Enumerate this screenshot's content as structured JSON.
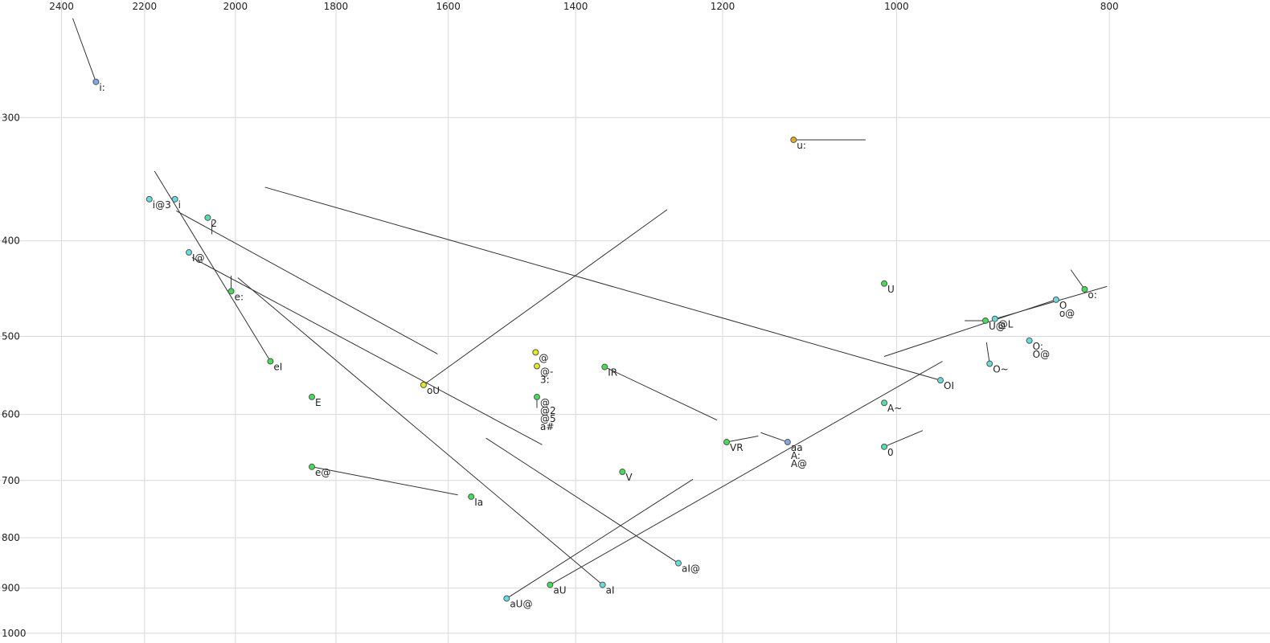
{
  "chart_data": {
    "type": "scatter",
    "log_x": true,
    "log_y": true,
    "grid": true,
    "xlim": [
      2560,
      676
    ],
    "ylim": [
      228,
      1023
    ],
    "xticks": [
      2400,
      2200,
      2000,
      1800,
      1600,
      1400,
      1200,
      1000,
      800
    ],
    "yticks": [
      300,
      400,
      500,
      600,
      700,
      800,
      900,
      1000
    ],
    "x": [
      2315,
      2189,
      2131,
      2059,
      2100,
      2009,
      1928,
      1846,
      1846,
      1642,
      1460,
      1458,
      1458,
      1358,
      1333,
      1195,
      1121,
      1114,
      1013,
      1013,
      1013,
      955,
      911,
      902,
      907,
      870,
      846,
      821,
      1562,
      1257,
      1438,
      1361,
      1505
    ],
    "y": [
      276,
      363,
      363,
      379,
      411,
      450,
      530,
      576,
      678,
      560,
      519,
      536,
      576,
      537,
      686,
      640,
      640,
      316,
      442,
      584,
      647,
      554,
      482,
      480,
      533,
      505,
      459,
      448,
      727,
      849,
      893,
      893,
      922
    ],
    "colors": [
      "#7fa8e8",
      "#66dddd",
      "#66dddd",
      "#55e0a8",
      "#66dddd",
      "#44dd55",
      "#44dd55",
      "#44dd55",
      "#44dd55",
      "#e8e820",
      "#e8e820",
      "#e8e820",
      "#44dd55",
      "#44dd55",
      "#44dd55",
      "#44dd55",
      "#7fa8e8",
      "#e8a818",
      "#44dd55",
      "#55e0a8",
      "#55e0a8",
      "#66dddd",
      "#44dd55",
      "#66dddd",
      "#66dddd",
      "#66dddd",
      "#66dddd",
      "#44dd55",
      "#44dd55",
      "#66dddd",
      "#44dd55",
      "#66dddd",
      "#66dddd"
    ],
    "labels": [
      [
        "i:"
      ],
      [
        "i@3"
      ],
      [
        "i"
      ],
      [
        "2"
      ],
      [
        "I@"
      ],
      [
        "e:"
      ],
      [
        "eI"
      ],
      [
        "E"
      ],
      [
        "e@"
      ],
      [
        "oU"
      ],
      [
        "@"
      ],
      [
        "@-",
        "3:"
      ],
      [
        "@",
        "@2",
        "@5",
        "a#"
      ],
      [
        "IR"
      ],
      [
        "V"
      ],
      [
        "VR"
      ],
      [
        "aa",
        "A:",
        "A@"
      ],
      [
        "u:"
      ],
      [
        "U"
      ],
      [
        "A~"
      ],
      [
        "0"
      ],
      [
        "OI"
      ],
      [
        "U@"
      ],
      [
        "@L"
      ],
      [
        "O~"
      ],
      [
        "O:",
        "O@"
      ],
      [
        "O",
        "o@"
      ],
      [
        "o:"
      ],
      [
        "Ia"
      ],
      [
        "aI@"
      ],
      [
        "aU"
      ],
      [
        "aI"
      ],
      [
        "aU@"
      ]
    ],
    "segments": [
      [
        2372,
        238,
        2315,
        276
      ],
      [
        2177,
        340,
        1928,
        530
      ],
      [
        2128,
        373,
        1618,
        521
      ],
      [
        2093,
        416,
        1450,
        644
      ],
      [
        1995,
        436,
        1361,
        893
      ],
      [
        2050,
        382,
        2050,
        394
      ],
      [
        2009,
        434,
        2009,
        450
      ],
      [
        1939,
        353,
        955,
        554
      ],
      [
        1642,
        560,
        1272,
        372
      ],
      [
        1846,
        678,
        1584,
        724
      ],
      [
        1538,
        634,
        1257,
        849
      ],
      [
        1505,
        922,
        1238,
        698
      ],
      [
        1438,
        893,
        953,
        530
      ],
      [
        1358,
        537,
        1207,
        608
      ],
      [
        1195,
        640,
        1156,
        631
      ],
      [
        1153,
        626,
        1121,
        640
      ],
      [
        1114,
        316,
        1033,
        316
      ],
      [
        1013,
        647,
        973,
        623
      ],
      [
        1013,
        524,
        846,
        459
      ],
      [
        931,
        482,
        911,
        482
      ],
      [
        902,
        480,
        802,
        445
      ],
      [
        910,
        507,
        907,
        533
      ],
      [
        833,
        428,
        821,
        448
      ],
      [
        1458,
        576,
        1458,
        591
      ]
    ]
  }
}
